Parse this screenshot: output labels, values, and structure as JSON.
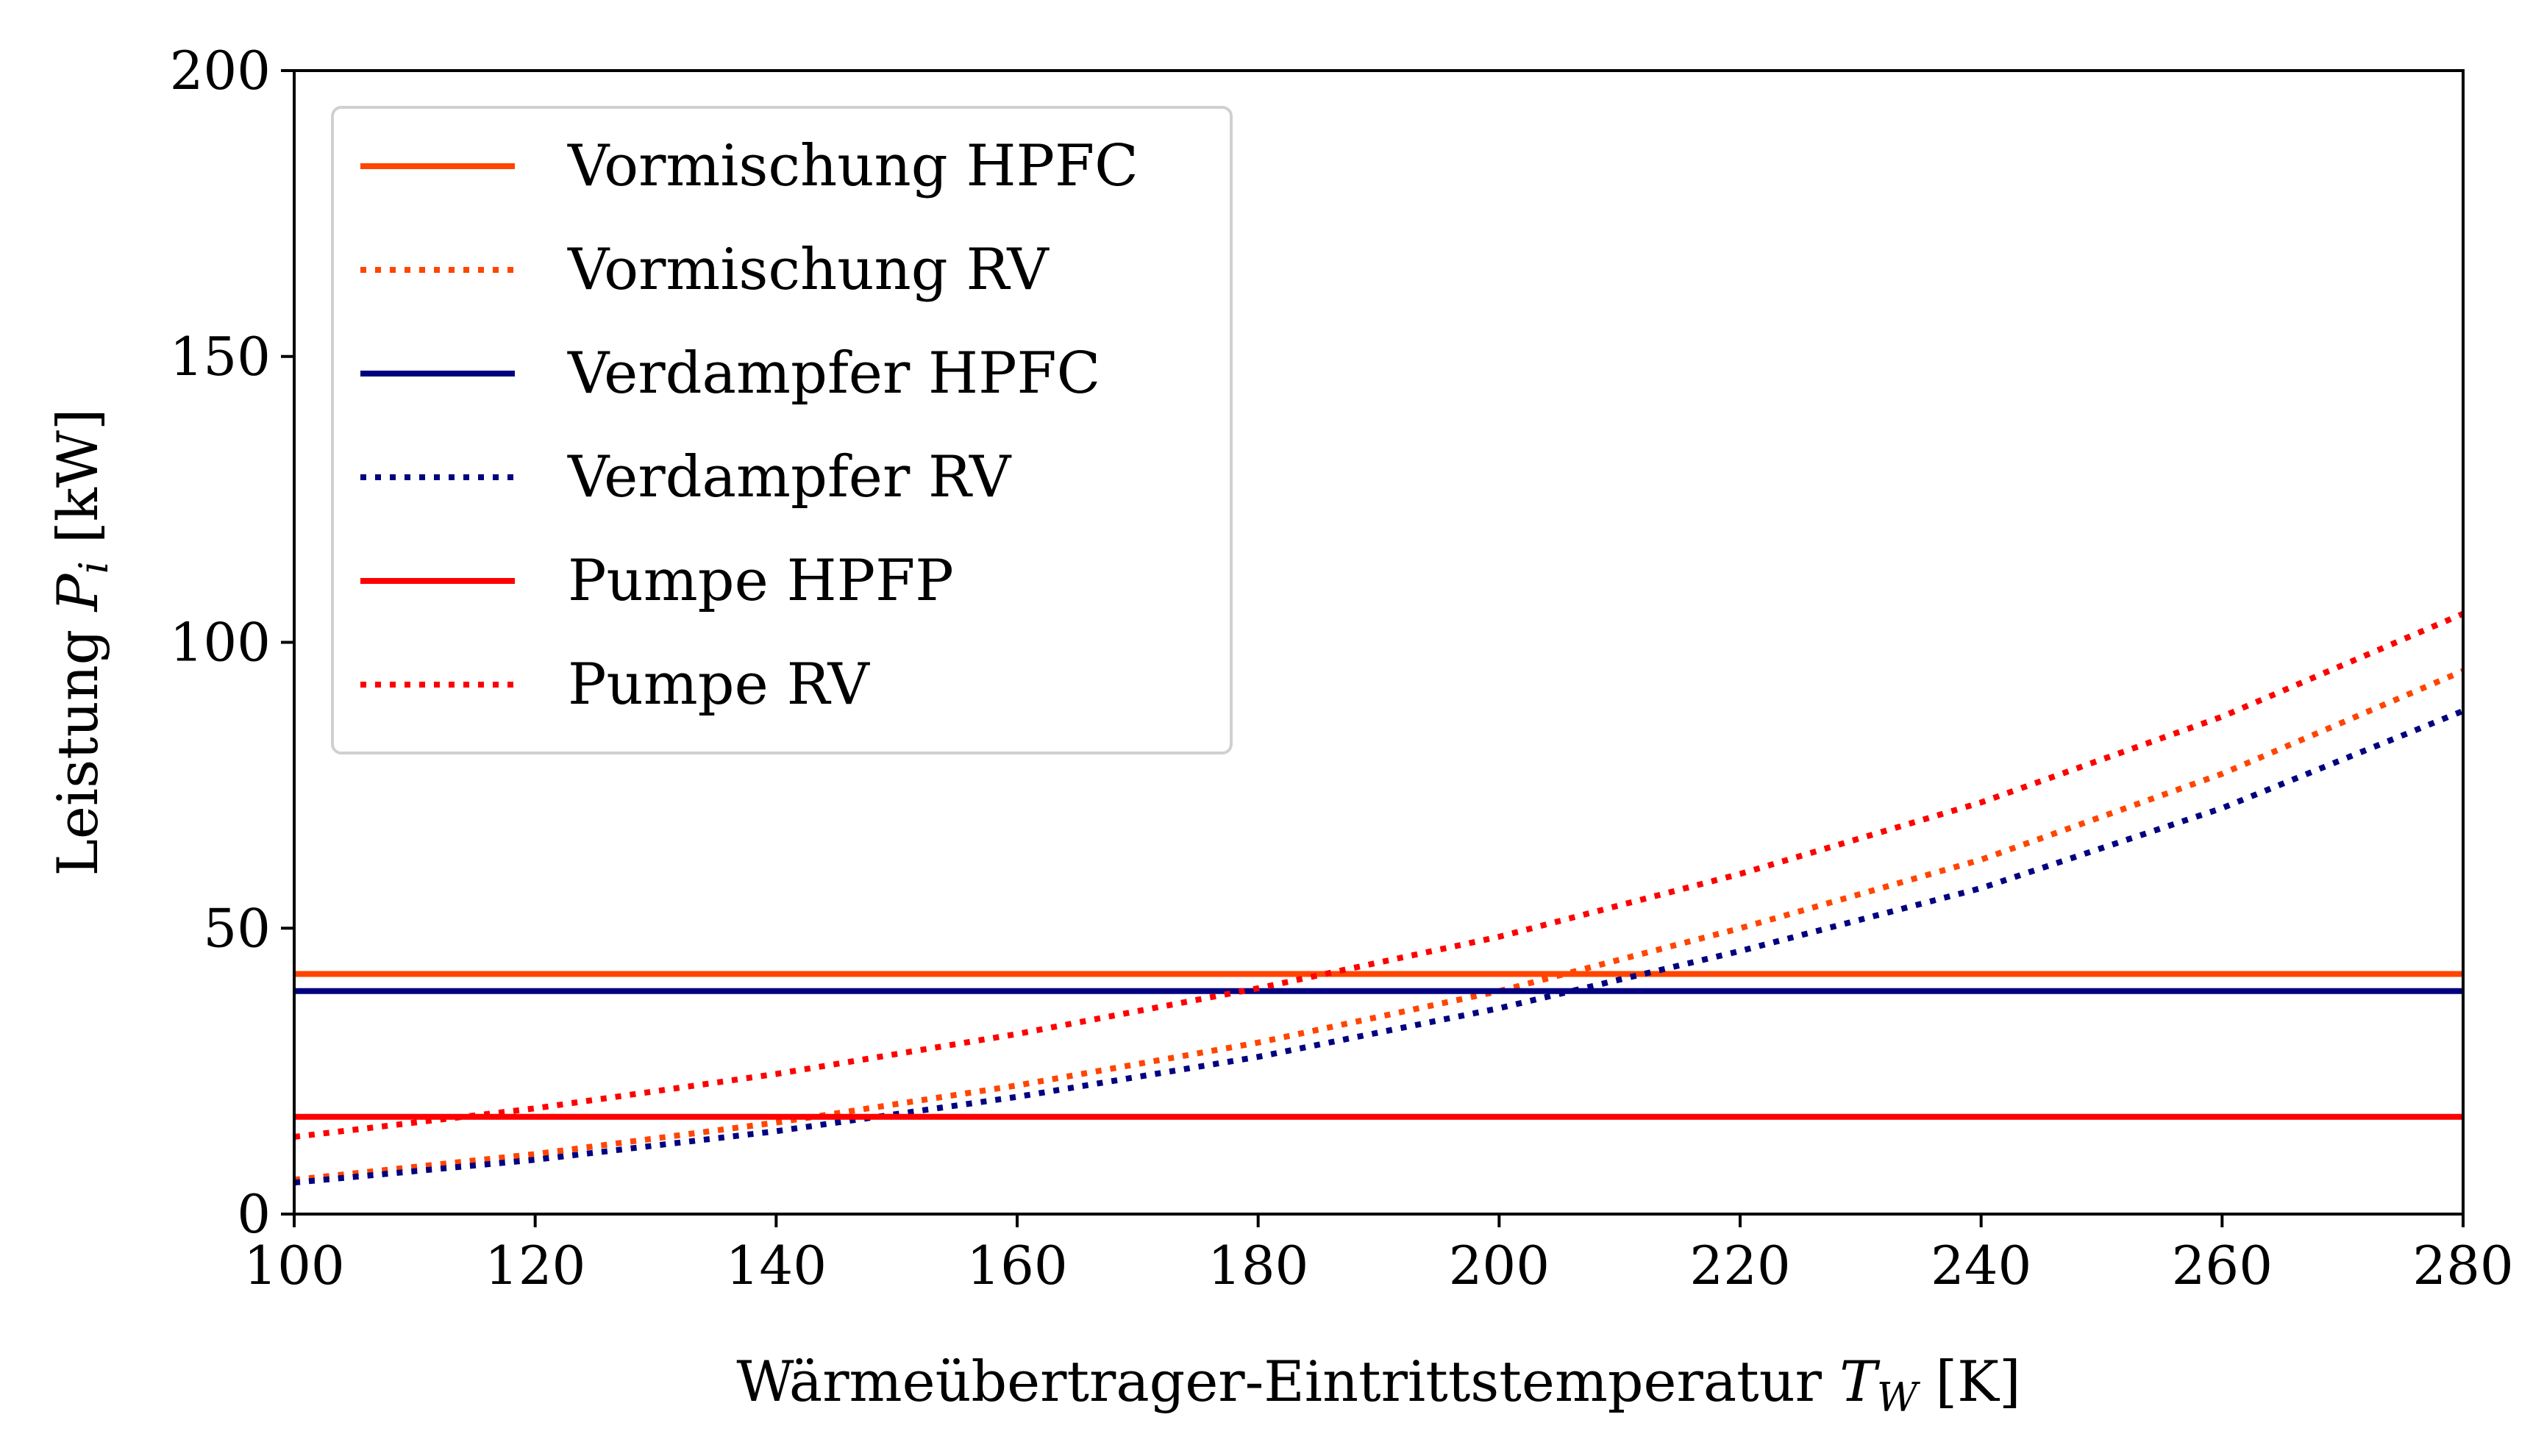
{
  "chart_data": {
    "type": "line",
    "xlabel_prefix": "Wärmeübertrager-Eintrittstemperatur ",
    "xlabel_symbol": "T",
    "xlabel_subscript": "W",
    "xlabel_unit": " [K]",
    "ylabel_prefix": "Leistung ",
    "ylabel_symbol": "P",
    "ylabel_subscript": "i",
    "ylabel_unit": " [kW]",
    "xlim": [
      100,
      280
    ],
    "ylim": [
      0,
      200
    ],
    "x_ticks": [
      100,
      120,
      140,
      160,
      180,
      200,
      220,
      240,
      260,
      280
    ],
    "y_ticks": [
      0,
      50,
      100,
      150,
      200
    ],
    "grid": false,
    "legend_position": "top-left",
    "x": [
      100,
      120,
      140,
      160,
      180,
      200,
      220,
      240,
      260,
      280
    ],
    "series": [
      {
        "name": "Vormischung HPFC",
        "style": "solid",
        "color": "#ff4500",
        "values": [
          42,
          42,
          42,
          42,
          42,
          42,
          42,
          42,
          42,
          42
        ]
      },
      {
        "name": "Vormischung RV",
        "style": "dotted",
        "color": "#ff4500",
        "values": [
          6,
          10.5,
          16,
          22.5,
          30,
          39,
          50,
          62,
          77,
          95
        ]
      },
      {
        "name": "Verdampfer HPFC",
        "style": "solid",
        "color": "#000080",
        "values": [
          39,
          39,
          39,
          39,
          39,
          39,
          39,
          39,
          39,
          39
        ]
      },
      {
        "name": "Verdampfer RV",
        "style": "dotted",
        "color": "#000080",
        "values": [
          5.5,
          9.5,
          14.5,
          20.5,
          27.5,
          36,
          46,
          57,
          71,
          88
        ]
      },
      {
        "name": "Pumpe HPFP",
        "style": "solid",
        "color": "#ff0000",
        "values": [
          17,
          17,
          17,
          17,
          17,
          17,
          17,
          17,
          17,
          17
        ]
      },
      {
        "name": "Pumpe RV",
        "style": "dotted",
        "color": "#ff0000",
        "values": [
          13.5,
          18.5,
          24.5,
          31.5,
          39.5,
          48.5,
          59.5,
          72,
          87,
          105
        ]
      }
    ]
  }
}
